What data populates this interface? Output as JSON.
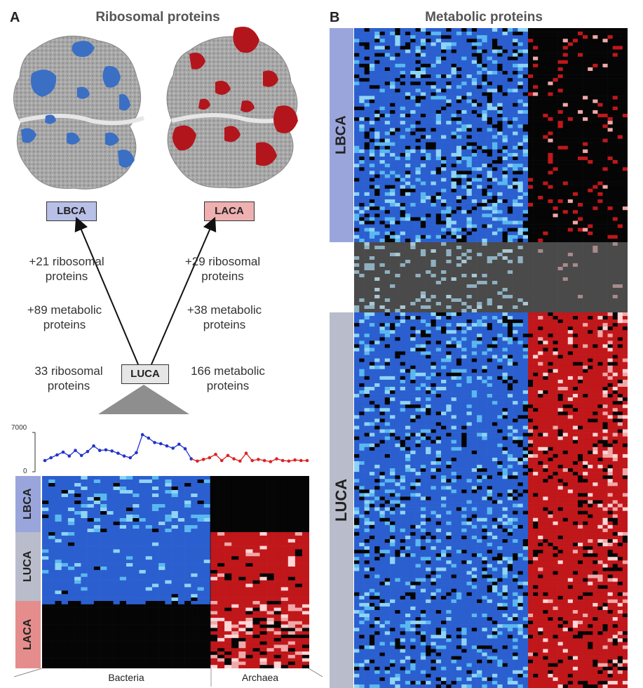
{
  "panel_a": {
    "letter": "A",
    "title": "Ribosomal proteins",
    "node_lbca": "LBCA",
    "node_laca": "LACA",
    "node_luca": "LUCA",
    "left_ribo_gain": "+21 ribosomal proteins",
    "left_meta_gain": "+89 metabolic proteins",
    "right_ribo_gain": "+29 ribosomal proteins",
    "right_meta_gain": "+38 metabolic proteins",
    "luca_ribo": "33 ribosomal proteins",
    "luca_meta": "166 metabolic proteins",
    "ytick_top": "7000",
    "ytick_bottom": "0",
    "side_lbca": "LBCA",
    "side_luca": "LUCA",
    "side_laca": "LACA",
    "xlabel_bacteria": "Bacteria",
    "xlabel_archaea": "Archaea"
  },
  "panel_b": {
    "letter": "B",
    "title": "Metabolic proteins",
    "side_lbca": "LBCA",
    "side_luca": "LUCA"
  },
  "colors": {
    "bacteria": "#2b5fcf",
    "bacteria_light": "#5ab8f0",
    "archaea": "#c0171b",
    "archaea_light": "#f0a8a8",
    "black": "#050505",
    "grey_block": "#4a4a4a",
    "lbca_tag": "#9aa6db",
    "luca_tag": "#b9bccb",
    "laca_tag": "#e58d8d",
    "ribosome_grey": "#a9a9a9",
    "ribosome_blue": "#3a6fc4",
    "ribosome_red": "#b2161c"
  },
  "chart_data": {
    "type": "line",
    "ylim": [
      0,
      7000
    ],
    "series": [
      {
        "values": [
          2000,
          2500,
          3000,
          3500,
          2800,
          3800,
          2900,
          3600,
          4600,
          3800,
          3900,
          3700,
          3300,
          2800,
          2500,
          3400,
          6600,
          6000,
          5200,
          5000,
          4600,
          4200,
          4900,
          4100,
          2300
        ]
      },
      {
        "values": [
          1900,
          2200,
          2500,
          3100,
          2000,
          2900,
          2300,
          1900,
          3300,
          2000,
          2200,
          2000,
          1800,
          2300,
          2000,
          1900,
          2100,
          2000,
          2000
        ]
      }
    ]
  }
}
